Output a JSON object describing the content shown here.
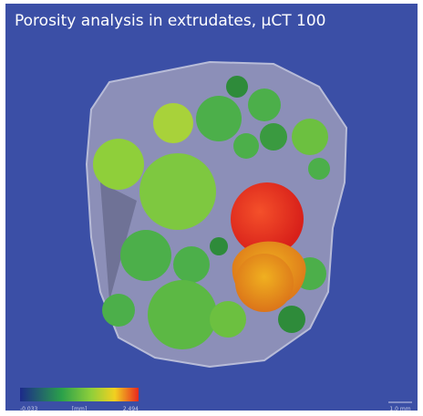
{
  "header": {
    "title": "Porosity analysis in extrudates, μCT 100"
  },
  "colorbar": {
    "min_label": "-0.033",
    "unit_label": "[mm]",
    "max_label": "2.494"
  },
  "scale_bar": {
    "label": "1.0 mm"
  }
}
